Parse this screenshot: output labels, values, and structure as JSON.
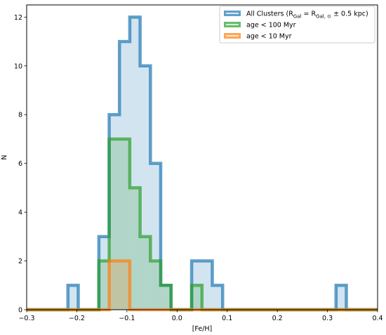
{
  "chart_data": {
    "type": "histogram",
    "xlabel": "[Fe/H]",
    "ylabel": "N",
    "xlim": [
      -0.3,
      0.4
    ],
    "ylim": [
      0,
      12.5
    ],
    "xticks": [
      -0.3,
      -0.2,
      -0.1,
      0.0,
      0.1,
      0.2,
      0.3,
      0.4
    ],
    "xtick_labels": [
      "−0.3",
      "−0.2",
      "−0.1",
      "0.0",
      "0.1",
      "0.2",
      "0.3",
      "0.4"
    ],
    "yticks": [
      0,
      2,
      4,
      6,
      8,
      10,
      12
    ],
    "ytick_labels": [
      "0",
      "2",
      "4",
      "6",
      "8",
      "10",
      "12"
    ],
    "grid": false,
    "legend_position": "top-right",
    "bin_edges": [
      -0.3,
      -0.2794,
      -0.2589,
      -0.2383,
      -0.2177,
      -0.1971,
      -0.1766,
      -0.156,
      -0.1354,
      -0.1149,
      -0.0943,
      -0.0737,
      -0.0531,
      -0.0326,
      -0.012,
      0.0086,
      0.0291,
      0.0497,
      0.0703,
      0.0909,
      0.1114,
      0.132,
      0.1526,
      0.1731,
      0.1937,
      0.2143,
      0.2349,
      0.2554,
      0.276,
      0.2966,
      0.3171,
      0.3377,
      0.3583,
      0.3789,
      0.3994,
      0.4
    ],
    "series": [
      {
        "name": "All Clusters (R_Gal = R_Gal,⊙ ± 0.5 kpc)",
        "color": "#1f77b4",
        "counts": [
          0,
          0,
          0,
          0,
          1,
          0,
          0,
          3,
          8,
          11,
          12,
          10,
          6,
          1,
          0,
          0,
          2,
          2,
          1,
          0,
          0,
          0,
          0,
          0,
          0,
          0,
          0,
          0,
          0,
          0,
          1,
          0,
          0,
          0,
          0
        ]
      },
      {
        "name": "age < 100 Myr",
        "color": "#2ca02c",
        "counts": [
          0,
          0,
          0,
          0,
          0,
          0,
          0,
          2,
          7,
          7,
          5,
          3,
          2,
          1,
          0,
          0,
          1,
          0,
          0,
          0,
          0,
          0,
          0,
          0,
          0,
          0,
          0,
          0,
          0,
          0,
          0,
          0,
          0,
          0,
          0
        ]
      },
      {
        "name": "age < 10 Myr",
        "color": "#ff7f0e",
        "counts": [
          0,
          0,
          0,
          0,
          0,
          0,
          0,
          0,
          2,
          2,
          0,
          0,
          0,
          0,
          0,
          0,
          0,
          0,
          0,
          0,
          0,
          0,
          0,
          0,
          0,
          0,
          0,
          0,
          0,
          0,
          0,
          0,
          0,
          0,
          0
        ]
      }
    ],
    "legend": [
      {
        "label_main": "All Clusters (R",
        "sub1": "Gal",
        "label_mid": " = R",
        "sub2": "Gal, ⊙",
        "label_end": " ± 0.5 kpc)"
      },
      {
        "label": "age  <  100 Myr"
      },
      {
        "label": "age  <  10 Myr"
      }
    ]
  }
}
